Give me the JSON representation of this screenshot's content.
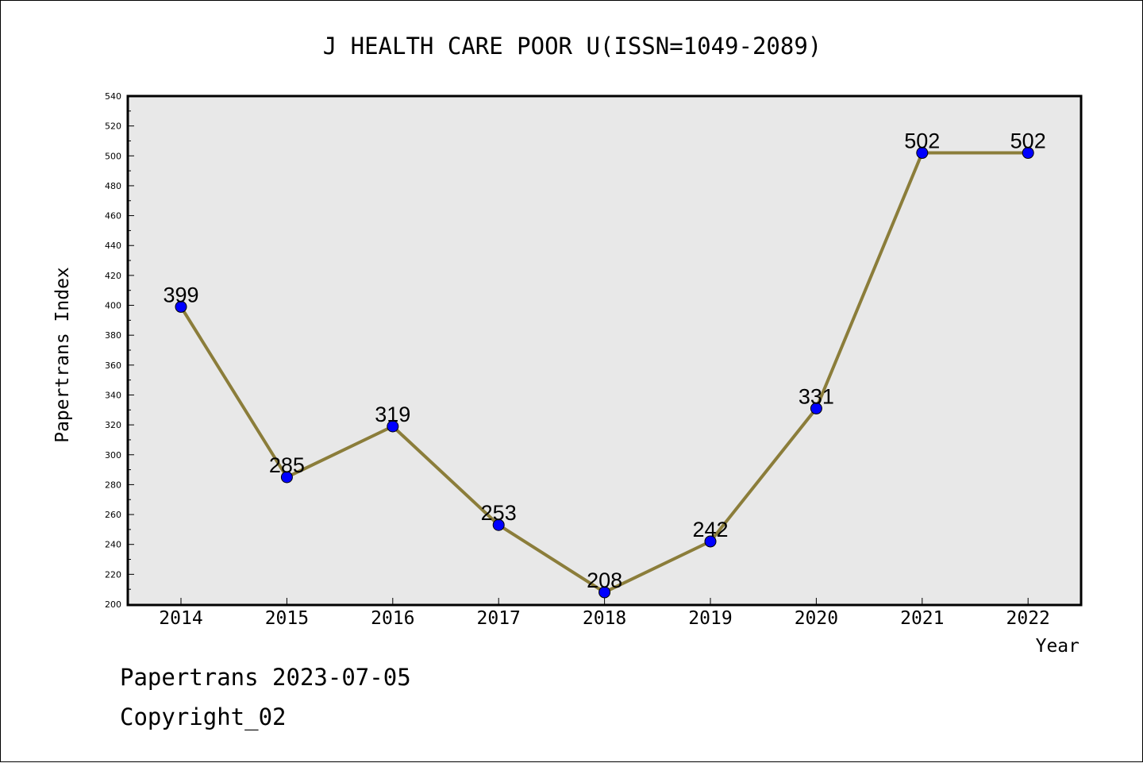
{
  "chart_data": {
    "type": "line",
    "title": "J HEALTH CARE POOR U(ISSN=1049-2089)",
    "xlabel": "Year",
    "ylabel": "Papertrans Index",
    "categories": [
      "2014",
      "2015",
      "2016",
      "2017",
      "2018",
      "2019",
      "2020",
      "2021",
      "2022"
    ],
    "series": [
      {
        "values": [
          399,
          285,
          319,
          253,
          208,
          242,
          331,
          502,
          502
        ],
        "data_labels": [
          "399",
          "285",
          "319",
          "253",
          "208",
          "242",
          "331",
          "502",
          "502"
        ]
      }
    ],
    "ylim": [
      200,
      540
    ],
    "yticks": [
      200,
      220,
      240,
      260,
      280,
      300,
      320,
      340,
      360,
      380,
      400,
      420,
      440,
      460,
      480,
      500,
      520,
      540
    ],
    "ytick_labels": [
      "200",
      "220",
      "240",
      "260",
      "280",
      "300",
      "320",
      "340",
      "360",
      "380",
      "400",
      "420",
      "440",
      "460",
      "480",
      "500",
      "520",
      "540"
    ],
    "grid": false,
    "colors": {
      "line": "#8b7d3a",
      "marker": "#0000ff",
      "plot_background": "#e8e8e8",
      "axis": "#000000"
    }
  },
  "footer": {
    "line1": "Papertrans 2023-07-05",
    "line2": "Copyright_02"
  }
}
